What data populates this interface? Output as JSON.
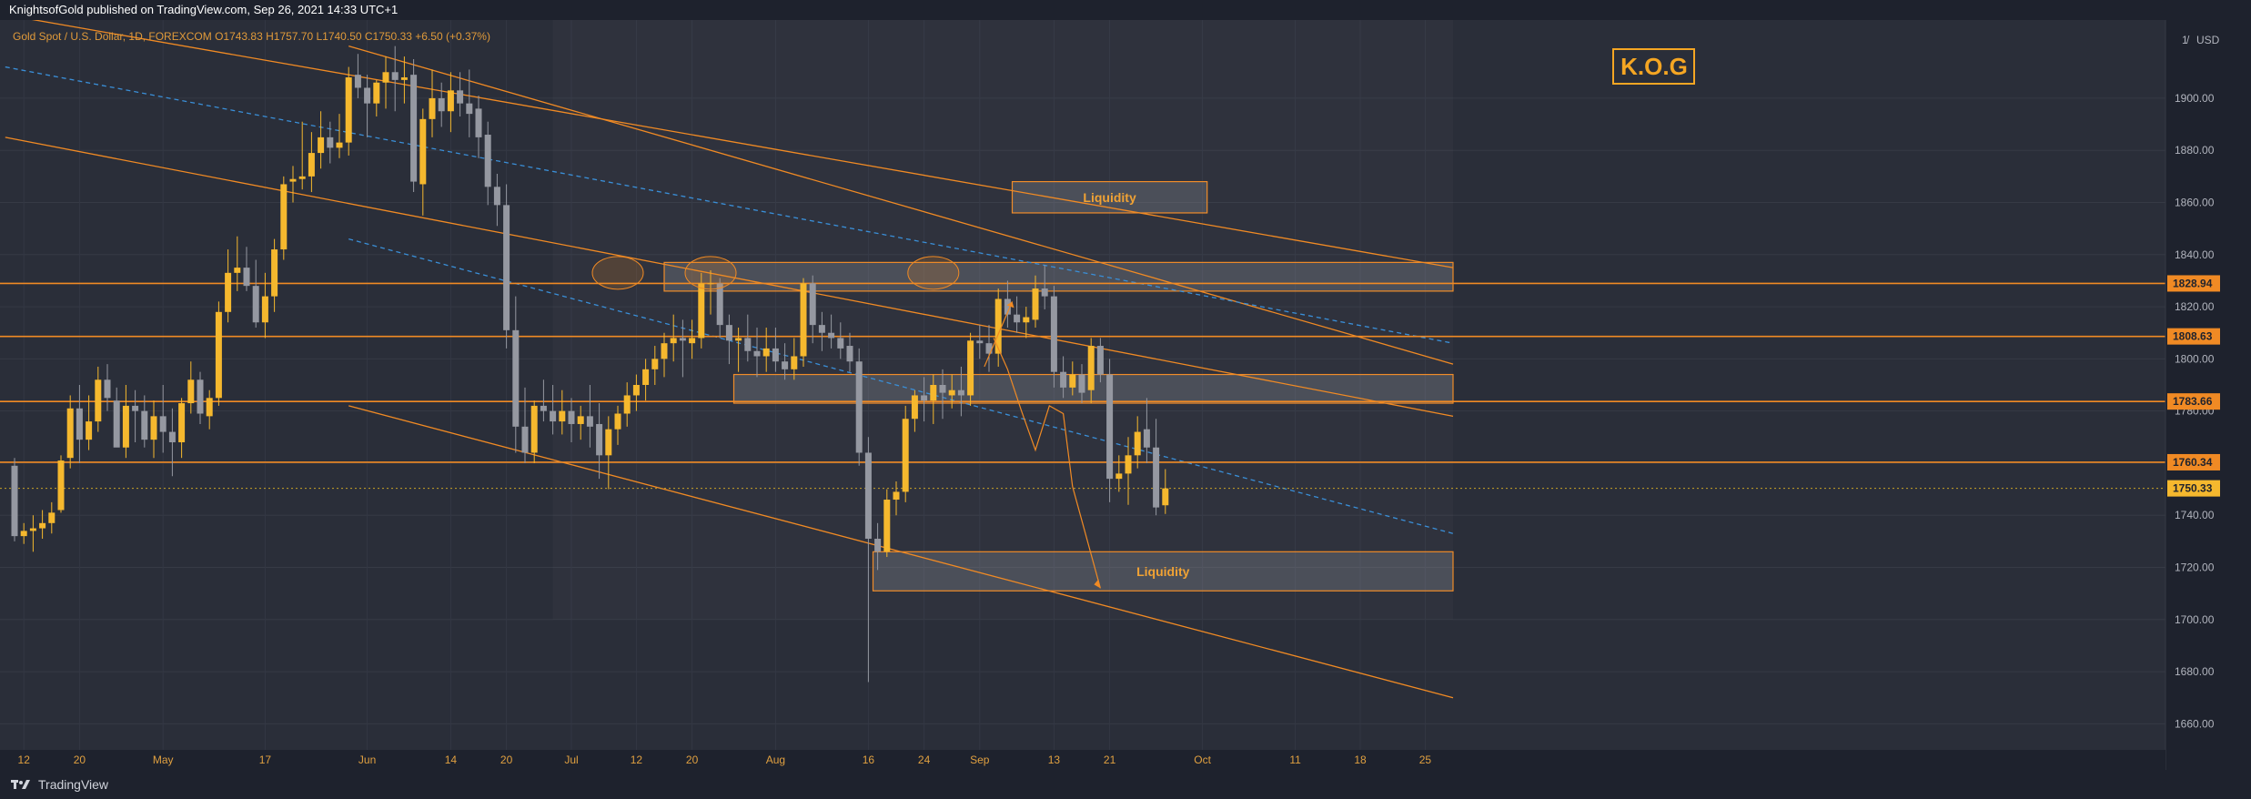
{
  "header": {
    "published": "KnightsofGold published on TradingView.com, Sep 26, 2021 14:33 UTC+1"
  },
  "legend": {
    "text": "Gold Spot / U.S. Dollar, 1D, FOREXCOM  O1743.83  H1757.70  L1740.50  C1750.33  +6.50 (+0.37%)"
  },
  "logo_text": "K.O.G",
  "axis": {
    "currency": "USD",
    "currency_marker": "1̸"
  },
  "footer": {
    "brand": "TradingView"
  },
  "colors": {
    "bg": "#2a2e39",
    "up": "#f5b82e",
    "down": "#9598a1",
    "orange": "#f08a24",
    "zone": "#9598a1",
    "blue": "#3a8fd8"
  },
  "chart_data": {
    "type": "candlestick",
    "title": "Gold Spot / U.S. Dollar, 1D, FOREXCOM",
    "ylabel": "USD",
    "ylim": [
      1650,
      1930
    ],
    "y_ticks": [
      1660,
      1680,
      1700,
      1720,
      1740,
      1760,
      1780,
      1800,
      1820,
      1840,
      1860,
      1880,
      1900
    ],
    "x_ticks": [
      {
        "label": "12",
        "i": 1
      },
      {
        "label": "20",
        "i": 7
      },
      {
        "label": "May",
        "i": 16
      },
      {
        "label": "17",
        "i": 27
      },
      {
        "label": "Jun",
        "i": 38
      },
      {
        "label": "14",
        "i": 47
      },
      {
        "label": "20",
        "i": 53
      },
      {
        "label": "Jul",
        "i": 60
      },
      {
        "label": "12",
        "i": 67
      },
      {
        "label": "20",
        "i": 73
      },
      {
        "label": "Aug",
        "i": 82
      },
      {
        "label": "16",
        "i": 92
      },
      {
        "label": "24",
        "i": 98
      },
      {
        "label": "Sep",
        "i": 104
      },
      {
        "label": "13",
        "i": 112
      },
      {
        "label": "21",
        "i": 118
      },
      {
        "label": "Oct",
        "i": 128
      },
      {
        "label": "11",
        "i": 138
      },
      {
        "label": "18",
        "i": 145
      },
      {
        "label": "25",
        "i": 152
      }
    ],
    "candles": [
      [
        1759,
        1762,
        1730,
        1732
      ],
      [
        1732,
        1737,
        1729,
        1734
      ],
      [
        1734,
        1740,
        1726,
        1735
      ],
      [
        1735,
        1742,
        1731,
        1737
      ],
      [
        1737,
        1745,
        1733,
        1741
      ],
      [
        1742,
        1763,
        1741,
        1761
      ],
      [
        1762,
        1786,
        1758,
        1781
      ],
      [
        1781,
        1790,
        1760,
        1769
      ],
      [
        1769,
        1786,
        1765,
        1776
      ],
      [
        1776,
        1797,
        1772,
        1792
      ],
      [
        1792,
        1798,
        1780,
        1785
      ],
      [
        1784,
        1789,
        1767,
        1766
      ],
      [
        1766,
        1790,
        1762,
        1782
      ],
      [
        1782,
        1788,
        1768,
        1780
      ],
      [
        1780,
        1786,
        1766,
        1769
      ],
      [
        1769,
        1784,
        1762,
        1778
      ],
      [
        1778,
        1790,
        1764,
        1772
      ],
      [
        1772,
        1781,
        1755,
        1768
      ],
      [
        1768,
        1785,
        1762,
        1783
      ],
      [
        1783,
        1799,
        1779,
        1792
      ],
      [
        1792,
        1795,
        1775,
        1779
      ],
      [
        1778,
        1788,
        1773,
        1785
      ],
      [
        1785,
        1822,
        1782,
        1818
      ],
      [
        1818,
        1842,
        1814,
        1833
      ],
      [
        1833,
        1847,
        1826,
        1835
      ],
      [
        1835,
        1843,
        1826,
        1828
      ],
      [
        1828,
        1838,
        1812,
        1814
      ],
      [
        1814,
        1833,
        1808,
        1824
      ],
      [
        1824,
        1846,
        1818,
        1842
      ],
      [
        1842,
        1870,
        1838,
        1867
      ],
      [
        1868,
        1874,
        1860,
        1869
      ],
      [
        1869,
        1891,
        1865,
        1870
      ],
      [
        1870,
        1887,
        1864,
        1879
      ],
      [
        1879,
        1895,
        1873,
        1885
      ],
      [
        1885,
        1891,
        1875,
        1881
      ],
      [
        1881,
        1894,
        1877,
        1883
      ],
      [
        1883,
        1912,
        1878,
        1908
      ],
      [
        1909,
        1917,
        1900,
        1904
      ],
      [
        1904,
        1909,
        1885,
        1898
      ],
      [
        1898,
        1907,
        1893,
        1906
      ],
      [
        1906,
        1916,
        1896,
        1910
      ],
      [
        1910,
        1920,
        1895,
        1907
      ],
      [
        1907,
        1916,
        1898,
        1908
      ],
      [
        1909,
        1915,
        1864,
        1868
      ],
      [
        1867,
        1896,
        1855,
        1892
      ],
      [
        1892,
        1911,
        1885,
        1900
      ],
      [
        1900,
        1906,
        1889,
        1895
      ],
      [
        1895,
        1910,
        1887,
        1903
      ],
      [
        1903,
        1910,
        1893,
        1898
      ],
      [
        1898,
        1911,
        1885,
        1894
      ],
      [
        1896,
        1901,
        1877,
        1885
      ],
      [
        1886,
        1891,
        1859,
        1866
      ],
      [
        1866,
        1871,
        1851,
        1859
      ],
      [
        1859,
        1867,
        1804,
        1811
      ],
      [
        1811,
        1824,
        1764,
        1774
      ],
      [
        1774,
        1789,
        1760,
        1764
      ],
      [
        1764,
        1784,
        1760,
        1782
      ],
      [
        1782,
        1792,
        1776,
        1780
      ],
      [
        1780,
        1790,
        1771,
        1776
      ],
      [
        1776,
        1788,
        1771,
        1780
      ],
      [
        1780,
        1785,
        1768,
        1775
      ],
      [
        1775,
        1782,
        1769,
        1778
      ],
      [
        1778,
        1790,
        1766,
        1774
      ],
      [
        1775,
        1783,
        1754,
        1763
      ],
      [
        1763,
        1778,
        1750,
        1773
      ],
      [
        1773,
        1782,
        1767,
        1779
      ],
      [
        1779,
        1791,
        1774,
        1786
      ],
      [
        1786,
        1794,
        1780,
        1790
      ],
      [
        1790,
        1800,
        1784,
        1796
      ],
      [
        1796,
        1805,
        1790,
        1800
      ],
      [
        1800,
        1810,
        1793,
        1806
      ],
      [
        1806,
        1817,
        1799,
        1808
      ],
      [
        1808,
        1815,
        1793,
        1807
      ],
      [
        1806,
        1815,
        1800,
        1808
      ],
      [
        1808,
        1833,
        1804,
        1829
      ],
      [
        1829,
        1834,
        1817,
        1829
      ],
      [
        1829,
        1831,
        1808,
        1813
      ],
      [
        1813,
        1817,
        1798,
        1807
      ],
      [
        1807,
        1812,
        1795,
        1808
      ],
      [
        1808,
        1817,
        1799,
        1803
      ],
      [
        1803,
        1812,
        1793,
        1801
      ],
      [
        1801,
        1812,
        1795,
        1804
      ],
      [
        1804,
        1812,
        1795,
        1799
      ],
      [
        1799,
        1806,
        1792,
        1796
      ],
      [
        1796,
        1808,
        1792,
        1801
      ],
      [
        1801,
        1831,
        1797,
        1829
      ],
      [
        1829,
        1832,
        1806,
        1813
      ],
      [
        1813,
        1818,
        1803,
        1810
      ],
      [
        1810,
        1817,
        1804,
        1808
      ],
      [
        1808,
        1814,
        1800,
        1804
      ],
      [
        1805,
        1810,
        1795,
        1799
      ],
      [
        1799,
        1804,
        1759,
        1764
      ],
      [
        1764,
        1770,
        1676,
        1731
      ],
      [
        1731,
        1737,
        1719,
        1726
      ],
      [
        1726,
        1750,
        1724,
        1746
      ],
      [
        1746,
        1753,
        1740,
        1749
      ],
      [
        1749,
        1782,
        1745,
        1777
      ],
      [
        1777,
        1788,
        1772,
        1786
      ],
      [
        1786,
        1793,
        1776,
        1784
      ],
      [
        1784,
        1794,
        1775,
        1790
      ],
      [
        1790,
        1796,
        1777,
        1787
      ],
      [
        1786,
        1794,
        1781,
        1788
      ],
      [
        1788,
        1797,
        1778,
        1786
      ],
      [
        1786,
        1810,
        1782,
        1807
      ],
      [
        1807,
        1813,
        1800,
        1806
      ],
      [
        1806,
        1813,
        1795,
        1802
      ],
      [
        1802,
        1827,
        1797,
        1823
      ],
      [
        1823,
        1830,
        1812,
        1817
      ],
      [
        1817,
        1824,
        1810,
        1814
      ],
      [
        1814,
        1820,
        1808,
        1816
      ],
      [
        1815,
        1832,
        1812,
        1827
      ],
      [
        1827,
        1836,
        1819,
        1824
      ],
      [
        1824,
        1828,
        1789,
        1795
      ],
      [
        1795,
        1801,
        1785,
        1789
      ],
      [
        1789,
        1799,
        1786,
        1794
      ],
      [
        1794,
        1798,
        1783,
        1787
      ],
      [
        1788,
        1808,
        1783,
        1805
      ],
      [
        1805,
        1808,
        1791,
        1794
      ],
      [
        1794,
        1800,
        1745,
        1754
      ],
      [
        1754,
        1763,
        1749,
        1756
      ],
      [
        1756,
        1770,
        1744,
        1763
      ],
      [
        1763,
        1778,
        1758,
        1772
      ],
      [
        1773,
        1785,
        1760,
        1766
      ],
      [
        1766,
        1777,
        1740,
        1743
      ],
      [
        1743.83,
        1757.7,
        1740.5,
        1750.33
      ]
    ],
    "horizontal_levels": [
      1828.94,
      1808.63,
      1783.66,
      1760.34
    ],
    "current_price": 1750.33,
    "zones": [
      {
        "label": "Liquidity",
        "from_i": 107.5,
        "to_i": 128.5,
        "low": 1856,
        "high": 1868
      },
      {
        "label": "",
        "from_i": 70,
        "to_i": 155,
        "low": 1826,
        "high": 1837
      },
      {
        "label": "",
        "from_i": 77.5,
        "to_i": 155,
        "low": 1783,
        "high": 1794
      },
      {
        "label": "Liquidity",
        "from_i": 92.5,
        "to_i": 155,
        "low": 1711,
        "high": 1726
      }
    ]
  }
}
